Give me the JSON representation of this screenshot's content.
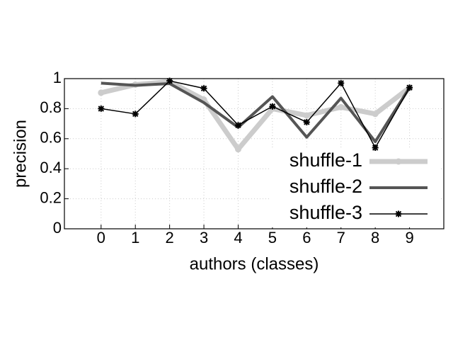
{
  "chart_data": {
    "type": "line",
    "xlabel": "authors (classes)",
    "ylabel": "precision",
    "x": [
      0,
      1,
      2,
      3,
      4,
      5,
      6,
      7,
      8,
      9
    ],
    "xlim": [
      -1.07,
      10
    ],
    "xticks": [
      0,
      1,
      2,
      3,
      4,
      5,
      6,
      7,
      8,
      9
    ],
    "ylim": [
      0,
      1
    ],
    "yticks": [
      0,
      0.2,
      0.4,
      0.6,
      0.8,
      1
    ],
    "grid": true,
    "legend": "lower right",
    "series": [
      {
        "name": "shuffle-1",
        "color": "#cccccc",
        "width": 7,
        "marker": "circle",
        "values": [
          0.906,
          0.96,
          0.98,
          0.86,
          0.53,
          0.8,
          0.755,
          0.81,
          0.765,
          0.94
        ]
      },
      {
        "name": "shuffle-2",
        "color": "#555555",
        "width": 4,
        "marker": "none",
        "values": [
          0.97,
          0.955,
          0.967,
          0.84,
          0.675,
          0.88,
          0.61,
          0.87,
          0.58,
          0.94
        ]
      },
      {
        "name": "shuffle-3",
        "color": "#000000",
        "width": 1.5,
        "marker": "star",
        "values": [
          0.8,
          0.765,
          0.985,
          0.935,
          0.69,
          0.815,
          0.71,
          0.97,
          0.54,
          0.94
        ]
      }
    ]
  }
}
